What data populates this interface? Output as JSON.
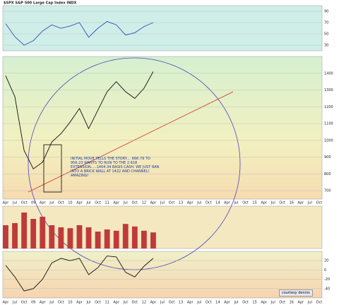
{
  "chart_data": [
    {
      "type": "line",
      "title": "$SPX S&P 500 Large Cap Index INDX",
      "color": "#2f4fbf",
      "values": [
        68,
        45,
        30,
        38,
        55,
        66,
        60,
        64,
        70,
        44,
        60,
        72,
        66,
        48,
        52,
        63,
        70,
        null,
        null,
        null,
        null,
        null,
        null,
        null,
        null,
        null,
        null,
        null,
        null,
        null,
        null,
        null,
        null,
        null,
        null
      ],
      "ylim": [
        20,
        100
      ],
      "yticks": [
        30,
        50,
        70,
        90
      ],
      "grid": true
    },
    {
      "type": "line",
      "color": "#111111",
      "categories": [
        "Apr",
        "Jul",
        "Oct",
        "09",
        "Apr",
        "Jul",
        "Oct",
        "10",
        "Apr",
        "Jul",
        "Oct",
        "11",
        "Apr",
        "Jul",
        "Oct",
        "12",
        "Apr",
        "Jul",
        "Oct",
        "13",
        "Apr",
        "Jul",
        "Oct",
        "14",
        "Apr",
        "Jul",
        "Oct",
        "15",
        "Apr",
        "Jul",
        "Oct",
        "16",
        "Apr",
        "Jul",
        "Oct"
      ],
      "values": [
        1385,
        1260,
        940,
        830,
        870,
        990,
        1040,
        1110,
        1190,
        1070,
        1180,
        1290,
        1350,
        1290,
        1250,
        1310,
        1410,
        null,
        null,
        null,
        null,
        null,
        null,
        null,
        null,
        null,
        null,
        null,
        null,
        null,
        null,
        null,
        null,
        null,
        null
      ],
      "ylim": [
        650,
        1500
      ],
      "yticks": [
        700,
        800,
        900,
        1000,
        1100,
        1200,
        1300,
        1400
      ],
      "grid": true,
      "annotations": [
        "INITIAL MOVE TELLS THE STORY.... 666.79 TO 956.23 WANTS TO RUN TO THE 2.618 EXTENSION.....1404.34 BASIS CASH. WE JUST RAN INTO A BRICK WALL AT 1422 AND CHANNEL! AMAZING!"
      ]
    },
    {
      "type": "bar",
      "color": "#c03a3a",
      "values": [
        5.5,
        6,
        8.5,
        7,
        7.5,
        5.5,
        5,
        4.8,
        5.5,
        5,
        4,
        4.5,
        4.2,
        5.8,
        5.2,
        4.2,
        3.8,
        null,
        null,
        null,
        null,
        null,
        null,
        null,
        null,
        null,
        null,
        null,
        null,
        null,
        null,
        null,
        null,
        null,
        null
      ],
      "ylim": [
        0,
        10
      ]
    },
    {
      "type": "line",
      "color": "#111111",
      "note_label": "courtesy dennis",
      "values": [
        10,
        -15,
        -45,
        -40,
        -20,
        15,
        25,
        20,
        25,
        -10,
        5,
        30,
        28,
        -5,
        -15,
        8,
        25,
        null,
        null,
        null,
        null,
        null,
        null,
        null,
        null,
        null,
        null,
        null,
        null,
        null,
        null,
        null,
        null,
        null,
        null
      ],
      "ylim": [
        -60,
        40
      ],
      "yticks": [
        -40,
        -20,
        0,
        20
      ],
      "grid": true
    }
  ]
}
